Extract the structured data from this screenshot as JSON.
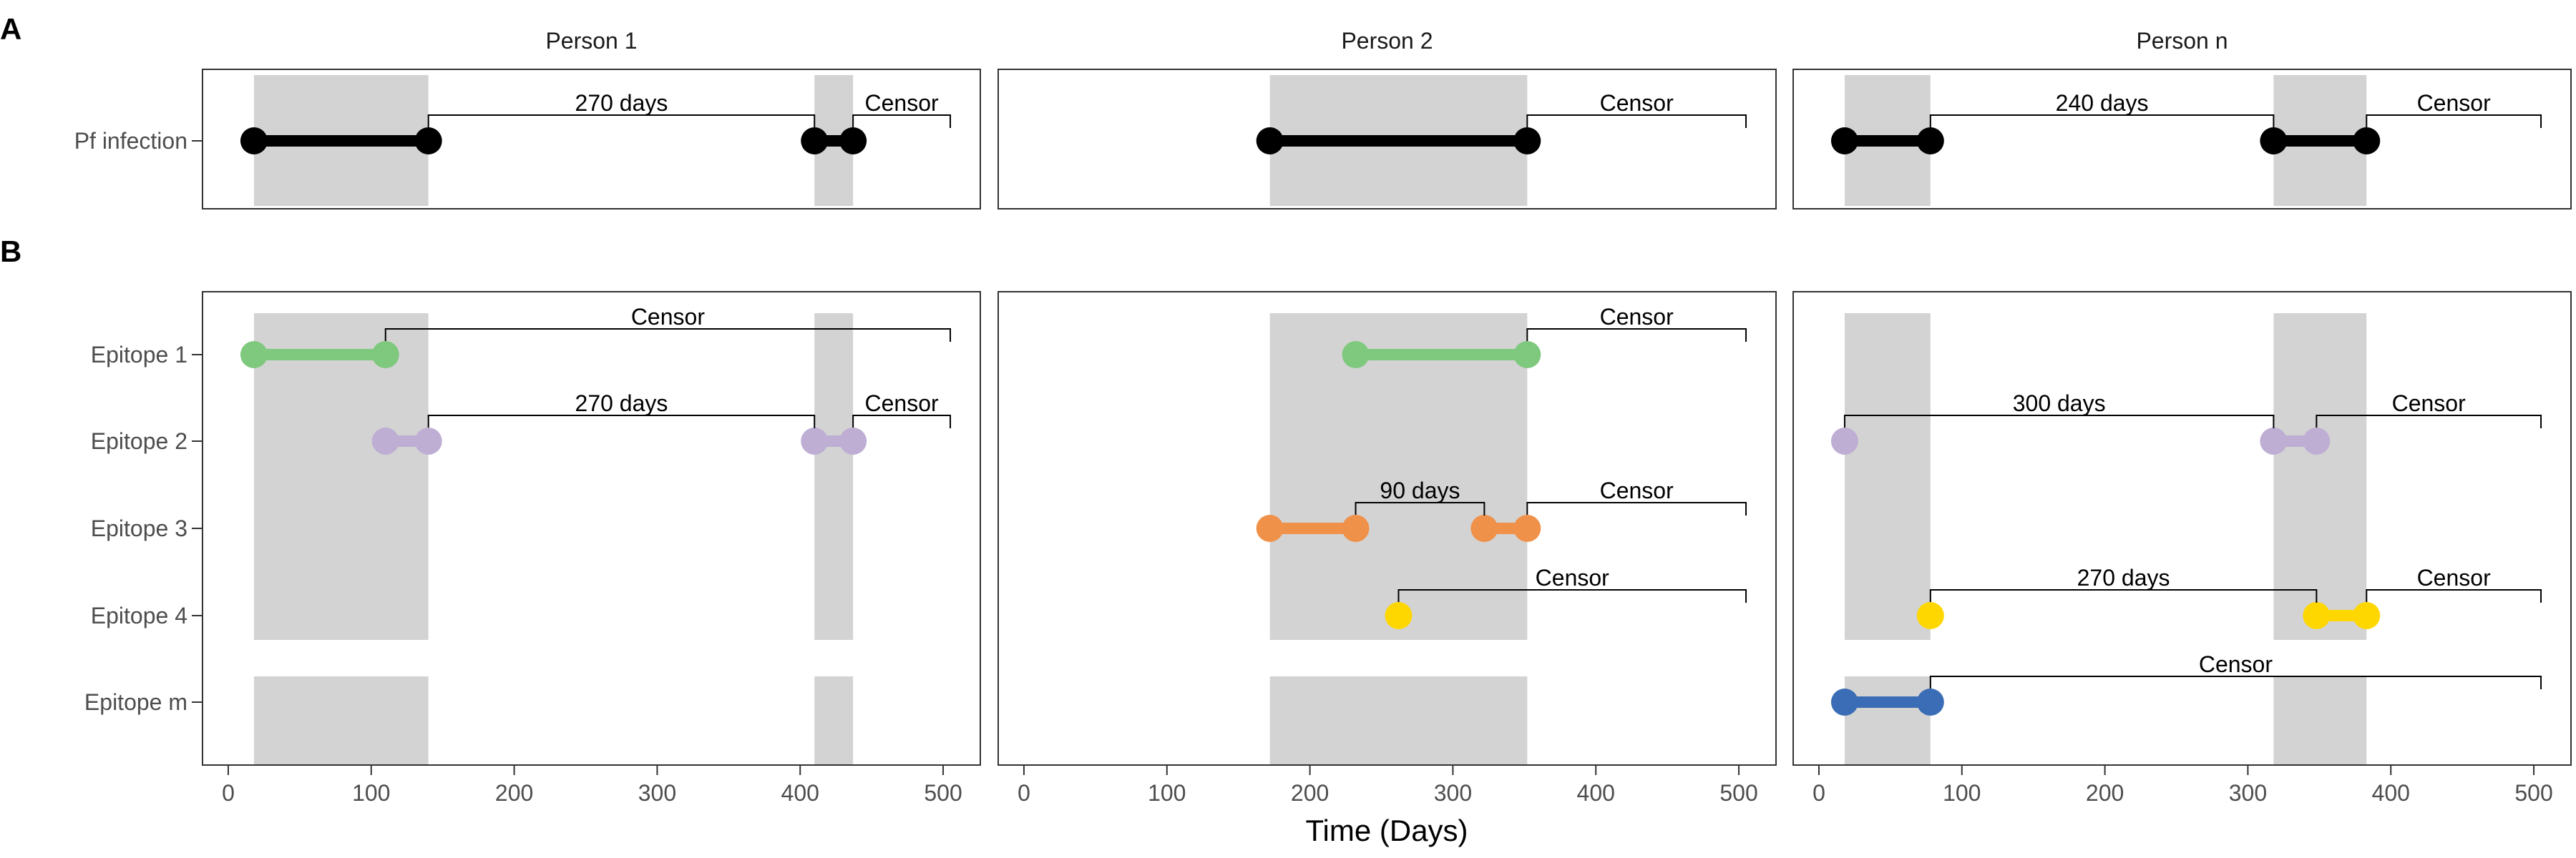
{
  "figure": {
    "x_axis_title": "Time (Days)",
    "x_ticks": [
      0,
      100,
      200,
      300,
      400,
      500
    ],
    "xlim": [
      -18,
      526
    ]
  },
  "colors": {
    "pf": "#000000",
    "epitope1": "#7fc97f",
    "epitope2": "#beaed4",
    "epitope3": "#f0914a",
    "epitope4": "#ffd700",
    "epitopem": "#3a6db5",
    "shade": "#d3d3d3"
  },
  "panels": [
    {
      "letter": "A",
      "rows": [
        "Pf infection"
      ]
    },
    {
      "letter": "B",
      "rows": [
        "Epitope 1",
        "Epitope 2",
        "Epitope 3",
        "Epitope 4",
        "Epitope m"
      ]
    }
  ],
  "facets": [
    {
      "title": "Person 1",
      "shades": [
        [
          18,
          140
        ],
        [
          410,
          437
        ]
      ],
      "panelA": [
        {
          "row": 0,
          "segments": [
            [
              18,
              140
            ],
            [
              410,
              437
            ]
          ],
          "color": "pf",
          "brackets": [
            {
              "from": 140,
              "to": 410,
              "end": "tick",
              "label": "270 days"
            },
            {
              "from": 437,
              "to": 505,
              "end": "tick",
              "label": "Censor"
            }
          ]
        }
      ],
      "panelB": [
        {
          "row": 0,
          "segments": [
            [
              18,
              110
            ]
          ],
          "color": "epitope1",
          "brackets": [
            {
              "from": 110,
              "to": 505,
              "end": "tick",
              "label": "Censor"
            }
          ]
        },
        {
          "row": 1,
          "segments": [
            [
              110,
              140
            ],
            [
              410,
              437
            ]
          ],
          "color": "epitope2",
          "brackets": [
            {
              "from": 140,
              "to": 410,
              "end": "tick",
              "label": "270 days"
            },
            {
              "from": 437,
              "to": 505,
              "end": "tick",
              "label": "Censor"
            }
          ]
        }
      ]
    },
    {
      "title": "Person 2",
      "shades": [
        [
          172,
          352
        ]
      ],
      "panelA": [
        {
          "row": 0,
          "segments": [
            [
              172,
              352
            ]
          ],
          "color": "pf",
          "brackets": [
            {
              "from": 352,
              "to": 505,
              "end": "tick",
              "label": "Censor"
            }
          ]
        }
      ],
      "panelB": [
        {
          "row": 0,
          "segments": [
            [
              232,
              352
            ]
          ],
          "color": "epitope1",
          "brackets": [
            {
              "from": 352,
              "to": 505,
              "end": "tick",
              "label": "Censor"
            }
          ]
        },
        {
          "row": 2,
          "segments": [
            [
              172,
              232
            ],
            [
              322,
              352
            ]
          ],
          "color": "epitope3",
          "brackets": [
            {
              "from": 232,
              "to": 322,
              "end": "tick",
              "label": "90 days"
            },
            {
              "from": 352,
              "to": 505,
              "end": "tick",
              "label": "Censor"
            }
          ]
        },
        {
          "row": 3,
          "segments": [
            [
              262,
              262
            ]
          ],
          "color": "epitope4",
          "brackets": [
            {
              "from": 262,
              "to": 505,
              "end": "tick",
              "label": "Censor"
            }
          ]
        }
      ]
    },
    {
      "title": "Person n",
      "shades": [
        [
          18,
          78
        ],
        [
          318,
          383
        ]
      ],
      "panelA": [
        {
          "row": 0,
          "segments": [
            [
              18,
              78
            ],
            [
              318,
              383
            ]
          ],
          "color": "pf",
          "brackets": [
            {
              "from": 78,
              "to": 318,
              "end": "tick",
              "label": "240 days"
            },
            {
              "from": 383,
              "to": 505,
              "end": "tick",
              "label": "Censor"
            }
          ]
        }
      ],
      "panelB": [
        {
          "row": 1,
          "segments": [
            [
              18,
              18
            ],
            [
              318,
              348
            ]
          ],
          "color": "epitope2",
          "brackets": [
            {
              "from": 18,
              "to": 318,
              "end": "tick",
              "label": "300 days"
            },
            {
              "from": 348,
              "to": 505,
              "end": "tick",
              "label": "Censor"
            }
          ]
        },
        {
          "row": 3,
          "segments": [
            [
              78,
              78
            ],
            [
              348,
              383
            ]
          ],
          "color": "epitope4",
          "brackets": [
            {
              "from": 78,
              "to": 348,
              "end": "tick",
              "label": "270 days"
            },
            {
              "from": 383,
              "to": 505,
              "end": "tick",
              "label": "Censor"
            }
          ]
        },
        {
          "row": 4,
          "segments": [
            [
              18,
              78
            ]
          ],
          "color": "epitopem",
          "brackets": [
            {
              "from": 78,
              "to": 505,
              "end": "tick",
              "label": "Censor"
            }
          ]
        }
      ]
    }
  ]
}
